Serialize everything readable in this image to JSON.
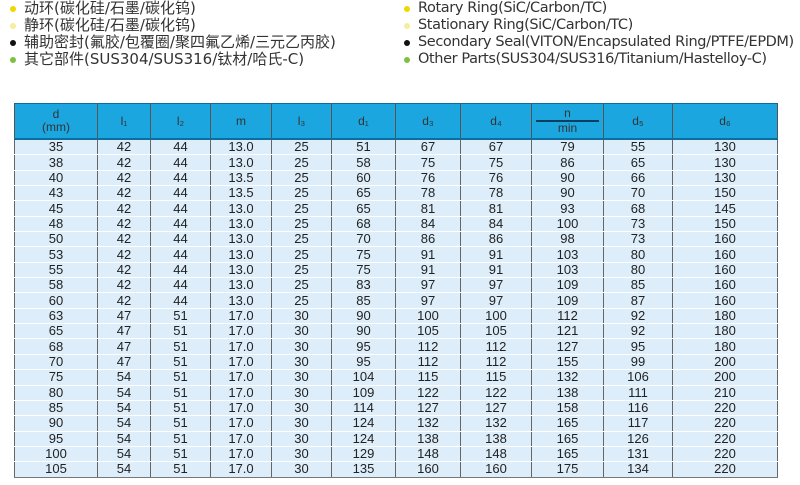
{
  "legend_cn": [
    {
      "text": "动环(碳化硅/石墨/碳化钨)",
      "color": "#f2d600"
    },
    {
      "text": "静环(碳化硅/石墨/碳化钨)",
      "color": "#f6ee9a"
    },
    {
      "text": "辅助密封(氟胶/包覆圈/聚四氟乙烯/三元乙丙胶)",
      "color": "#111111"
    },
    {
      "text": "其它部件(SUS304/SUS316/钛材/哈氏-C)",
      "color": "#7cc242"
    }
  ],
  "legend_en": [
    {
      "text": "Rotary Ring(SiC/Carbon/TC)",
      "color": "#f2d600"
    },
    {
      "text": "Stationary Ring(SiC/Carbon/TC)",
      "color": "#f6ee9a"
    },
    {
      "text": "Secondary Seal(VITON/Encapsulated Ring/PTFE/EPDM)",
      "color": "#111111"
    },
    {
      "text": "Other Parts(SUS304/SUS316/Titanium/Hastelloy-C)",
      "color": "#7cc242"
    }
  ],
  "table": {
    "headers": {
      "d": "d",
      "d_unit": "(mm)",
      "l1": "l₁",
      "l2": "l₂",
      "m": "m",
      "l3": "l₃",
      "d1": "d₁",
      "d3": "d₃",
      "d4": "d₄",
      "n_top": "n",
      "n_bottom": "min",
      "d5": "d₅",
      "d6": "d₆"
    },
    "rows": [
      [
        "35",
        "42",
        "44",
        "13.0",
        "25",
        "51",
        "67",
        "67",
        "79",
        "55",
        "130"
      ],
      [
        "38",
        "42",
        "44",
        "13.0",
        "25",
        "58",
        "75",
        "75",
        "86",
        "65",
        "130"
      ],
      [
        "40",
        "42",
        "44",
        "13.5",
        "25",
        "60",
        "76",
        "76",
        "90",
        "66",
        "130"
      ],
      [
        "43",
        "42",
        "44",
        "13.5",
        "25",
        "65",
        "78",
        "78",
        "90",
        "70",
        "150"
      ],
      [
        "45",
        "42",
        "44",
        "13.0",
        "25",
        "65",
        "81",
        "81",
        "93",
        "68",
        "145"
      ],
      [
        "48",
        "42",
        "44",
        "13.0",
        "25",
        "68",
        "84",
        "84",
        "100",
        "73",
        "150"
      ],
      [
        "50",
        "42",
        "44",
        "13.0",
        "25",
        "70",
        "86",
        "86",
        "98",
        "73",
        "160"
      ],
      [
        "53",
        "42",
        "44",
        "13.0",
        "25",
        "75",
        "91",
        "91",
        "103",
        "80",
        "160"
      ],
      [
        "55",
        "42",
        "44",
        "13.0",
        "25",
        "75",
        "91",
        "91",
        "103",
        "80",
        "160"
      ],
      [
        "58",
        "42",
        "44",
        "13.0",
        "25",
        "83",
        "97",
        "97",
        "109",
        "85",
        "160"
      ],
      [
        "60",
        "42",
        "44",
        "13.0",
        "25",
        "85",
        "97",
        "97",
        "109",
        "87",
        "160"
      ],
      [
        "63",
        "47",
        "51",
        "17.0",
        "30",
        "90",
        "100",
        "100",
        "112",
        "92",
        "180"
      ],
      [
        "65",
        "47",
        "51",
        "17.0",
        "30",
        "90",
        "105",
        "105",
        "121",
        "92",
        "180"
      ],
      [
        "68",
        "47",
        "51",
        "17.0",
        "30",
        "95",
        "112",
        "112",
        "127",
        "95",
        "180"
      ],
      [
        "70",
        "47",
        "51",
        "17.0",
        "30",
        "95",
        "112",
        "112",
        "155",
        "99",
        "200"
      ],
      [
        "75",
        "54",
        "51",
        "17.0",
        "30",
        "104",
        "115",
        "115",
        "132",
        "106",
        "200"
      ],
      [
        "80",
        "54",
        "51",
        "17.0",
        "30",
        "109",
        "122",
        "122",
        "138",
        "111",
        "210"
      ],
      [
        "85",
        "54",
        "51",
        "17.0",
        "30",
        "114",
        "127",
        "127",
        "158",
        "116",
        "220"
      ],
      [
        "90",
        "54",
        "51",
        "17.0",
        "30",
        "124",
        "132",
        "132",
        "165",
        "117",
        "220"
      ],
      [
        "95",
        "54",
        "51",
        "17.0",
        "30",
        "124",
        "138",
        "138",
        "165",
        "126",
        "220"
      ],
      [
        "100",
        "54",
        "51",
        "17.0",
        "30",
        "129",
        "148",
        "148",
        "165",
        "131",
        "220"
      ],
      [
        "105",
        "54",
        "51",
        "17.0",
        "30",
        "135",
        "160",
        "160",
        "175",
        "134",
        "220"
      ]
    ]
  }
}
